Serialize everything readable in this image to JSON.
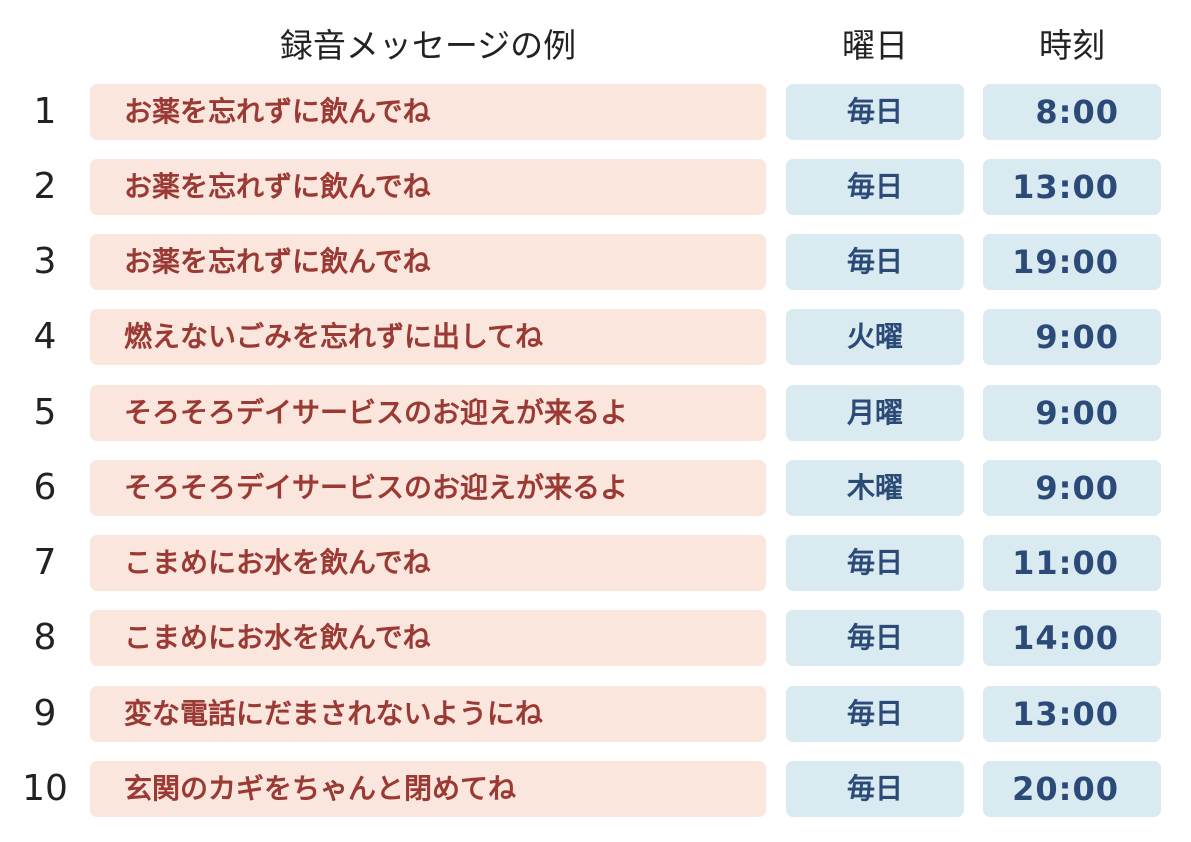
{
  "headers": {
    "message": "録音メッセージの例",
    "day": "曜日",
    "time": "時刻"
  },
  "rows": [
    {
      "num": "1",
      "message": "お薬を忘れずに飲んでね",
      "day": "毎日",
      "time": "8:00"
    },
    {
      "num": "2",
      "message": "お薬を忘れずに飲んでね",
      "day": "毎日",
      "time": "13:00"
    },
    {
      "num": "3",
      "message": "お薬を忘れずに飲んでね",
      "day": "毎日",
      "time": "19:00"
    },
    {
      "num": "4",
      "message": "燃えないごみを忘れずに出してね",
      "day": "火曜",
      "time": "9:00"
    },
    {
      "num": "5",
      "message": "そろそろデイサービスのお迎えが来るよ",
      "day": "月曜",
      "time": "9:00"
    },
    {
      "num": "6",
      "message": "そろそろデイサービスのお迎えが来るよ",
      "day": "木曜",
      "time": "9:00"
    },
    {
      "num": "7",
      "message": "こまめにお水を飲んでね",
      "day": "毎日",
      "time": "11:00"
    },
    {
      "num": "8",
      "message": "こまめにお水を飲んでね",
      "day": "毎日",
      "time": "14:00"
    },
    {
      "num": "9",
      "message": "変な電話にだまされないようにね",
      "day": "毎日",
      "time": "13:00"
    },
    {
      "num": "10",
      "message": "玄関のカギをちゃんと閉めてね",
      "day": "毎日",
      "time": "20:00"
    }
  ],
  "colors": {
    "message_bg": "#fae6dc",
    "message_text": "#9b3a35",
    "schedule_bg": "#d9eaf1",
    "schedule_text": "#2b4a78"
  }
}
